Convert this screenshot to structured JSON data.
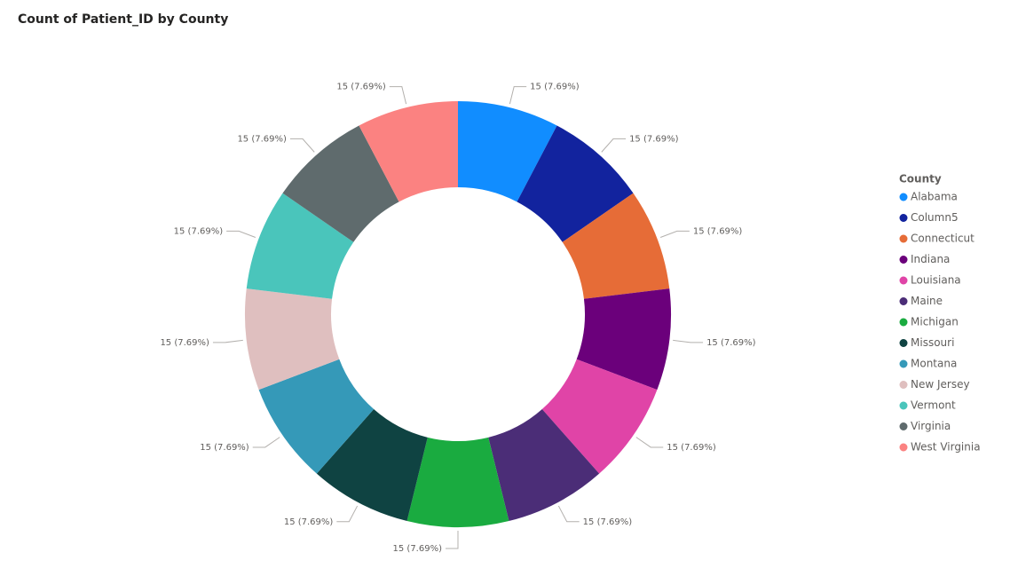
{
  "chart_data": {
    "type": "donut",
    "title": "Count of Patient_ID by County",
    "legend_title": "County",
    "categories": [
      "Alabama",
      "Column5",
      "Connecticut",
      "Indiana",
      "Louisiana",
      "Maine",
      "Michigan",
      "Missouri",
      "Montana",
      "New Jersey",
      "Vermont",
      "Virginia",
      "West Virginia"
    ],
    "values": [
      15,
      15,
      15,
      15,
      15,
      15,
      15,
      15,
      15,
      15,
      15,
      15,
      15
    ],
    "value_labels": [
      "15 (7.69%)",
      "15 (7.69%)",
      "15 (7.69%)",
      "15 (7.69%)",
      "15 (7.69%)",
      "15 (7.69%)",
      "15 (7.69%)",
      "15 (7.69%)",
      "15 (7.69%)",
      "15 (7.69%)",
      "15 (7.69%)",
      "15 (7.69%)",
      "15 (7.69%)"
    ],
    "colors": [
      "#118DFF",
      "#12239E",
      "#E66C37",
      "#6B007B",
      "#E044A7",
      "#4B2D77",
      "#1AAB40",
      "#0F4342",
      "#3599B8",
      "#DFBFBF",
      "#4AC5BB",
      "#5F6B6D",
      "#FB8281"
    ]
  }
}
